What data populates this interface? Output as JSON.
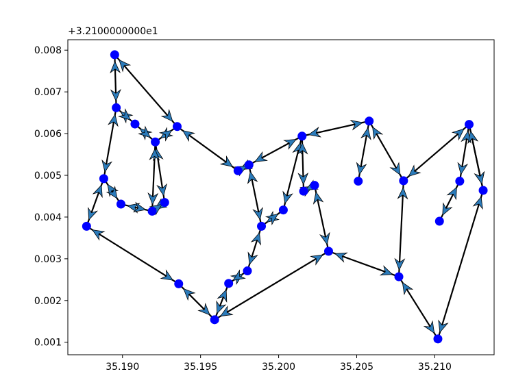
{
  "chart_data": {
    "type": "scatter",
    "title": "",
    "xlabel": "",
    "ylabel": "",
    "y_offset_label": "+3.2100000000e1",
    "xlim": [
      35.1865,
      35.2138
    ],
    "ylim": [
      0.0007,
      0.00825
    ],
    "x_ticks": [
      35.19,
      35.195,
      35.2,
      35.205,
      35.21
    ],
    "x_tick_labels": [
      "35.190",
      "35.195",
      "35.200",
      "35.205",
      "35.210"
    ],
    "y_ticks": [
      0.001,
      0.002,
      0.003,
      0.004,
      0.005,
      0.006,
      0.007,
      0.008
    ],
    "y_tick_labels": [
      "0.001",
      "0.002",
      "0.003",
      "0.004",
      "0.005",
      "0.006",
      "0.007",
      "0.008"
    ],
    "grid": false,
    "legend": "none",
    "marker_color": "#0000ff",
    "arrow_fill": "#2b7bba",
    "line_color": "#000000",
    "points": [
      {
        "x": 35.1895,
        "y": 0.00789
      },
      {
        "x": 35.1896,
        "y": 0.00662
      },
      {
        "x": 35.1908,
        "y": 0.00623
      },
      {
        "x": 35.1921,
        "y": 0.0058
      },
      {
        "x": 35.1927,
        "y": 0.00435
      },
      {
        "x": 35.1921,
        "y": 0.0058
      },
      {
        "x": 35.1935,
        "y": 0.00617
      },
      {
        "x": 35.1974,
        "y": 0.00511
      },
      {
        "x": 35.1981,
        "y": 0.00525
      },
      {
        "x": 35.1989,
        "y": 0.00378
      },
      {
        "x": 35.2003,
        "y": 0.00417
      },
      {
        "x": 35.2015,
        "y": 0.00594
      },
      {
        "x": 35.2058,
        "y": 0.0063
      },
      {
        "x": 35.2051,
        "y": 0.00486
      },
      {
        "x": 35.208,
        "y": 0.00487
      },
      {
        "x": 35.2122,
        "y": 0.00622
      },
      {
        "x": 35.2131,
        "y": 0.00464
      },
      {
        "x": 35.2102,
        "y": 0.00108
      },
      {
        "x": 35.2077,
        "y": 0.00257
      },
      {
        "x": 35.2032,
        "y": 0.00318
      },
      {
        "x": 35.2023,
        "y": 0.00476
      },
      {
        "x": 35.2016,
        "y": 0.00462
      },
      {
        "x": 35.2015,
        "y": 0.00594
      },
      {
        "x": 35.2003,
        "y": 0.00417
      },
      {
        "x": 35.1989,
        "y": 0.00378
      },
      {
        "x": 35.198,
        "y": 0.00271
      },
      {
        "x": 35.1968,
        "y": 0.00241
      },
      {
        "x": 35.1959,
        "y": 0.00154
      },
      {
        "x": 35.1936,
        "y": 0.0024
      },
      {
        "x": 35.1877,
        "y": 0.00378
      },
      {
        "x": 35.1888,
        "y": 0.00492
      },
      {
        "x": 35.1899,
        "y": 0.00431
      },
      {
        "x": 35.1919,
        "y": 0.00414
      },
      {
        "x": 35.1921,
        "y": 0.0058
      },
      {
        "x": 35.2116,
        "y": 0.00486
      },
      {
        "x": 35.2103,
        "y": 0.0039
      }
    ],
    "segments": [
      [
        0,
        1
      ],
      [
        1,
        2
      ],
      [
        2,
        3
      ],
      [
        3,
        4
      ],
      [
        3,
        32
      ],
      [
        3,
        6
      ],
      [
        0,
        6
      ],
      [
        6,
        7
      ],
      [
        7,
        8
      ],
      [
        8,
        9
      ],
      [
        9,
        10
      ],
      [
        10,
        11
      ],
      [
        8,
        11
      ],
      [
        11,
        12
      ],
      [
        12,
        13
      ],
      [
        12,
        14
      ],
      [
        14,
        15
      ],
      [
        15,
        16
      ],
      [
        16,
        17
      ],
      [
        14,
        18
      ],
      [
        18,
        17
      ],
      [
        18,
        19
      ],
      [
        19,
        20
      ],
      [
        20,
        21
      ],
      [
        21,
        11
      ],
      [
        19,
        27
      ],
      [
        27,
        28
      ],
      [
        28,
        29
      ],
      [
        29,
        30
      ],
      [
        30,
        1
      ],
      [
        30,
        31
      ],
      [
        31,
        32
      ],
      [
        32,
        4
      ],
      [
        9,
        25
      ],
      [
        25,
        26
      ],
      [
        26,
        27
      ],
      [
        15,
        34
      ],
      [
        34,
        35
      ],
      [
        15,
        16
      ]
    ]
  }
}
